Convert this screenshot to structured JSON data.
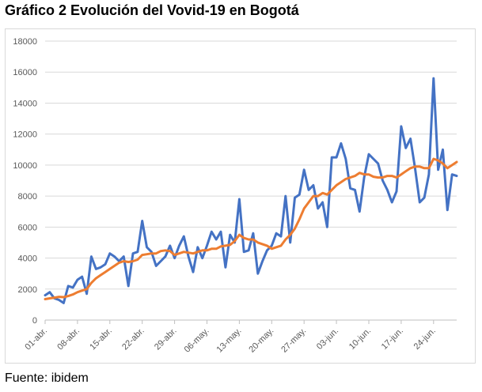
{
  "title": "Gráfico 2 Evolución del Vovid-19 en Bogotá",
  "source": "Fuente: ibidem",
  "colors": {
    "series1": "#4472c4",
    "series2": "#ed7d31",
    "grid": "#d9d9d9",
    "tick_text": "#595959"
  },
  "chart_data": {
    "type": "line",
    "title": "",
    "xlabel": "",
    "ylabel": "",
    "ylim": [
      0,
      18000
    ],
    "y_ticks": [
      0,
      2000,
      4000,
      6000,
      8000,
      10000,
      12000,
      14000,
      16000,
      18000
    ],
    "grid": true,
    "legend": "none",
    "x_ticks": [
      "01-abr.",
      "08-abr.",
      "15-abr.",
      "22-abr.",
      "29-abr.",
      "06-may.",
      "13-may.",
      "20-may.",
      "27-may.",
      "03-jun.",
      "10-jun.",
      "17-jun.",
      "24-jun."
    ],
    "x_tick_index": [
      0,
      7,
      14,
      21,
      28,
      35,
      42,
      49,
      56,
      63,
      70,
      77,
      84
    ],
    "series": [
      {
        "values": [
          1600,
          1800,
          1400,
          1300,
          1100,
          2200,
          2100,
          2600,
          2800,
          1700,
          4100,
          3300,
          3400,
          3600,
          4300,
          4100,
          3800,
          4100,
          2200,
          4300,
          4400,
          6400,
          4700,
          4400,
          3500,
          3800,
          4100,
          4800,
          4000,
          4800,
          5400,
          4100,
          3100,
          4700,
          4000,
          4800,
          5700,
          5200,
          5700,
          3400,
          5500,
          5000,
          7800,
          4400,
          4500,
          5600,
          3000,
          3800,
          4500,
          4800,
          5600,
          5400,
          8000,
          5000,
          7900,
          8100,
          9700,
          8400,
          8700,
          7200,
          7600,
          6000,
          10500,
          10500,
          11400,
          10400,
          8500,
          8400,
          7000,
          9200,
          10700,
          10400,
          10100,
          9000,
          8400,
          7600,
          8300,
          12500,
          11100,
          11700,
          9800,
          7600,
          7900,
          9400,
          15600,
          9700,
          11000,
          7100,
          9400,
          9300
        ]
      },
      {
        "values": [
          1350,
          1400,
          1450,
          1500,
          1480,
          1550,
          1650,
          1800,
          1900,
          2000,
          2400,
          2700,
          2900,
          3100,
          3300,
          3500,
          3700,
          3800,
          3750,
          3800,
          3900,
          4200,
          4250,
          4300,
          4300,
          4450,
          4500,
          4450,
          4200,
          4300,
          4400,
          4350,
          4300,
          4400,
          4500,
          4500,
          4600,
          4600,
          4750,
          4800,
          4850,
          5100,
          5500,
          5300,
          5200,
          5200,
          5000,
          4900,
          4800,
          4600,
          4700,
          4800,
          5200,
          5500,
          5900,
          6500,
          7200,
          7600,
          8000,
          8000,
          8200,
          8100,
          8400,
          8700,
          8900,
          9100,
          9200,
          9300,
          9500,
          9400,
          9400,
          9250,
          9200,
          9200,
          9300,
          9300,
          9200,
          9400,
          9600,
          9800,
          9900,
          9900,
          9800,
          9800,
          10400,
          10300,
          10100,
          9800,
          10000,
          10200
        ]
      }
    ]
  }
}
